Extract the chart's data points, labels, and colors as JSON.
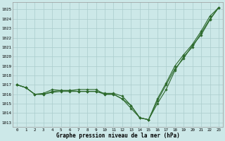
{
  "xlabel": "Graphe pression niveau de la mer (hPa)",
  "background_color": "#cce8e8",
  "grid_color": "#aacccc",
  "line_color": "#2d6a2d",
  "ylim_min": 1012.5,
  "ylim_max": 1025.8,
  "xlim_min": -0.5,
  "xlim_max": 23.5,
  "yticks": [
    1013,
    1014,
    1015,
    1016,
    1017,
    1018,
    1019,
    1020,
    1021,
    1022,
    1023,
    1024,
    1025
  ],
  "xticks": [
    0,
    1,
    2,
    3,
    4,
    5,
    6,
    7,
    8,
    9,
    10,
    11,
    12,
    13,
    14,
    15,
    16,
    17,
    18,
    19,
    20,
    21,
    22,
    23
  ],
  "series": [
    [
      1017.0,
      1016.7,
      1016.0,
      1016.0,
      1016.2,
      1016.3,
      1016.3,
      1016.3,
      1016.3,
      1016.3,
      1016.0,
      1016.0,
      1015.5,
      1014.8,
      1013.5,
      1013.3,
      1015.0,
      1016.5,
      1018.5,
      1020.0,
      1021.0,
      1022.5,
      1024.0,
      1025.2
    ],
    [
      1017.0,
      1016.7,
      1016.0,
      1016.1,
      1016.5,
      1016.4,
      1016.4,
      1016.5,
      1016.5,
      1016.5,
      1016.0,
      1016.0,
      1015.5,
      1014.5,
      1013.5,
      1013.3,
      1015.3,
      1017.0,
      1018.7,
      1019.8,
      1021.2,
      1022.3,
      1023.9,
      1025.2
    ],
    [
      1017.0,
      1016.7,
      1016.0,
      1016.0,
      1016.3,
      1016.4,
      1016.4,
      1016.3,
      1016.3,
      1016.3,
      1016.1,
      1016.1,
      1015.8,
      1014.8,
      1013.5,
      1013.3,
      1015.5,
      1017.2,
      1019.0,
      1020.2,
      1021.3,
      1022.7,
      1024.3,
      1025.2
    ]
  ]
}
